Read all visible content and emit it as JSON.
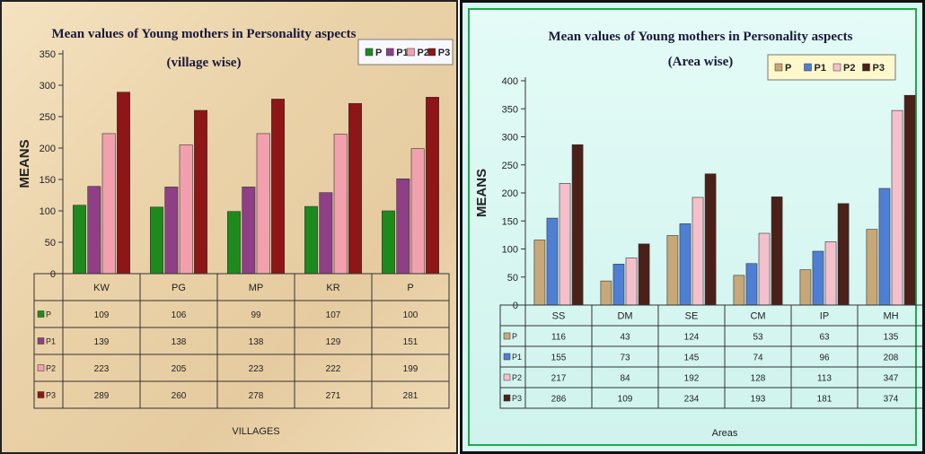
{
  "chart_data": [
    {
      "type": "bar",
      "title": "Mean values of Young mothers in Personality aspects",
      "subtitle": "(village wise)",
      "xlabel": "VILLAGES",
      "ylabel": "MEANS",
      "ylim": [
        0,
        350
      ],
      "yticks": [
        0,
        50,
        100,
        150,
        200,
        250,
        300,
        350
      ],
      "categories": [
        "KW",
        "PG",
        "MP",
        "KR",
        "P"
      ],
      "series": [
        {
          "name": "P",
          "color": "#1e8a1e",
          "values": [
            109,
            106,
            99,
            107,
            100
          ]
        },
        {
          "name": "P1",
          "color": "#8e3f86",
          "values": [
            139,
            138,
            138,
            129,
            151
          ]
        },
        {
          "name": "P2",
          "color": "#f2a0ae",
          "values": [
            223,
            205,
            223,
            222,
            199
          ]
        },
        {
          "name": "P3",
          "color": "#8e1616",
          "values": [
            289,
            260,
            278,
            271,
            281
          ]
        }
      ],
      "legend_position": "top-right",
      "data_table": true,
      "gridlines": false
    },
    {
      "type": "bar",
      "title": "Mean values of Young mothers in Personality aspects",
      "subtitle": "(Area wise)",
      "xlabel": "Areas",
      "ylabel": "MEANS",
      "ylim": [
        0,
        400
      ],
      "yticks": [
        0,
        50,
        100,
        150,
        200,
        250,
        300,
        350,
        400
      ],
      "categories": [
        "SS",
        "DM",
        "SE",
        "CM",
        "IP",
        "MH"
      ],
      "series": [
        {
          "name": "P",
          "color": "#c8a878",
          "values": [
            116,
            43,
            124,
            53,
            63,
            135
          ]
        },
        {
          "name": "P1",
          "color": "#4f7fd4",
          "values": [
            155,
            73,
            145,
            74,
            96,
            208
          ]
        },
        {
          "name": "P2",
          "color": "#f4c0cc",
          "values": [
            217,
            84,
            192,
            128,
            113,
            347
          ]
        },
        {
          "name": "P3",
          "color": "#4a2018",
          "values": [
            286,
            109,
            234,
            193,
            181,
            374
          ]
        }
      ],
      "legend_position": "top-right",
      "data_table": true,
      "gridlines": false
    }
  ]
}
